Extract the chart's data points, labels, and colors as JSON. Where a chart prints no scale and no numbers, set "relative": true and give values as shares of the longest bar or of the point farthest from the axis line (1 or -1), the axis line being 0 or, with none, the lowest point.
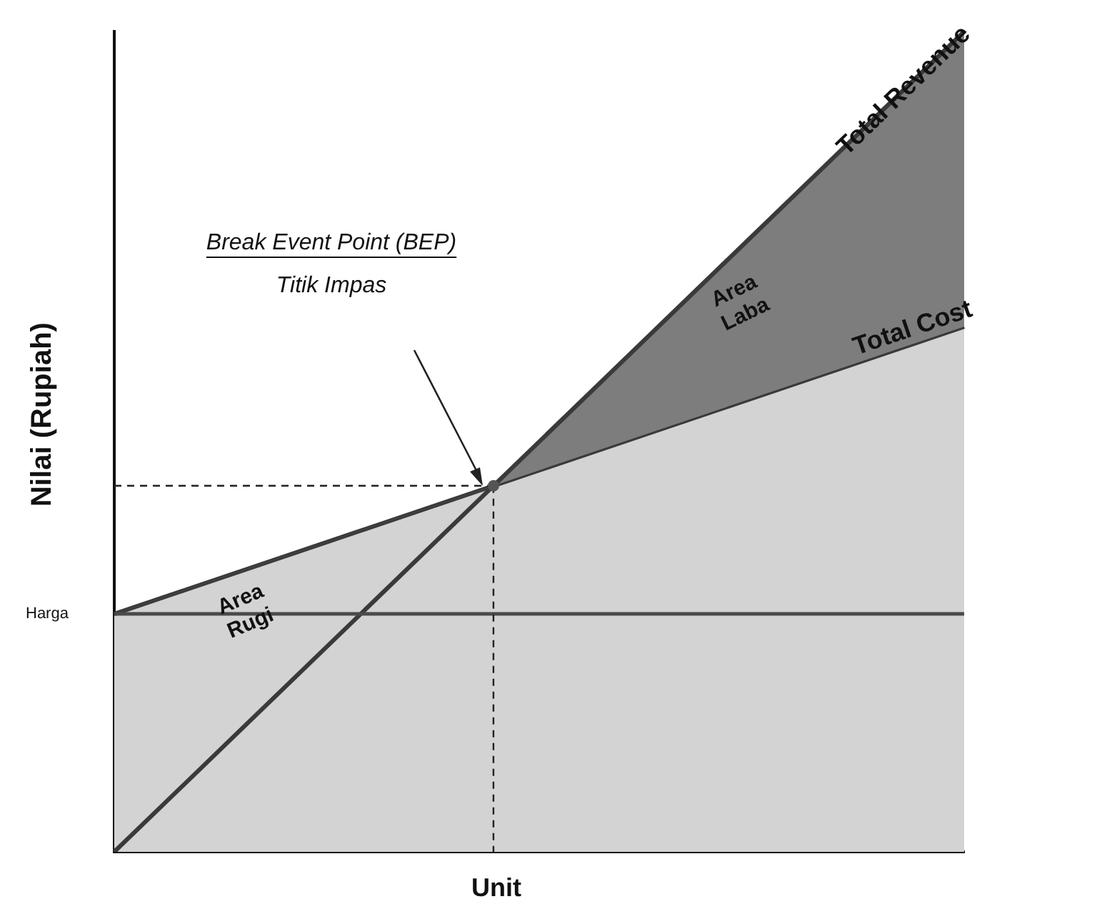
{
  "chart_data": {
    "type": "line",
    "relative": true,
    "xlabel": "Unit",
    "ylabel": "Nilai (Rupiah)",
    "grid": false,
    "legend": false,
    "categories": [
      null,
      null,
      null,
      null,
      null,
      null,
      null,
      null,
      null,
      null
    ],
    "series": [
      {
        "name": "Total Revenue",
        "type": "area",
        "color": "#3a3a3a",
        "values": [
          0,
          null,
          null,
          null,
          null,
          null,
          null,
          null,
          null,
          1
        ]
      },
      {
        "name": "Total Cost",
        "type": "area",
        "color": "#3a3a3a",
        "values": [
          0.29,
          null,
          null,
          null,
          null,
          null,
          null,
          null,
          null,
          0.64
        ]
      }
    ],
    "ref_lines": [
      {
        "axis": "y",
        "value": 0.29,
        "label": "Harga",
        "color": "#4a4a4a"
      }
    ],
    "annotations": [
      "Break Event Point (BEP)",
      "Titik Impas",
      "Area Laba",
      "Area Rugi"
    ]
  }
}
